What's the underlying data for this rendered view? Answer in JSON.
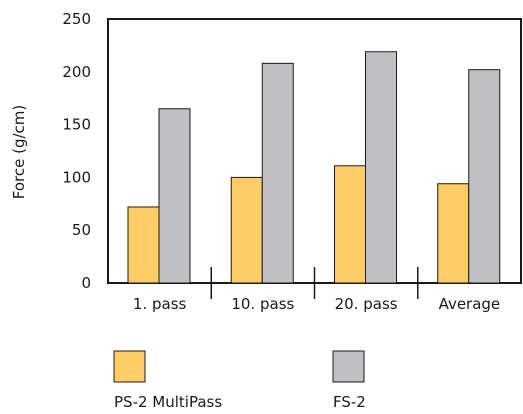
{
  "chart_data": {
    "type": "bar",
    "title": "",
    "xlabel": "",
    "ylabel": "Force (g/cm)",
    "ylim": [
      0,
      250
    ],
    "yticks": [
      0,
      50,
      100,
      150,
      200,
      250
    ],
    "categories": [
      "1. pass",
      "10. pass",
      "20. pass",
      "Average"
    ],
    "series": [
      {
        "name": "PS-2 MultiPass",
        "color": "#FFCC66",
        "values": [
          72,
          100,
          111,
          94
        ]
      },
      {
        "name": "FS-2",
        "color": "#C0C0C4",
        "values": [
          165,
          208,
          219,
          202
        ]
      }
    ],
    "grid": false,
    "legend_position": "bottom"
  }
}
